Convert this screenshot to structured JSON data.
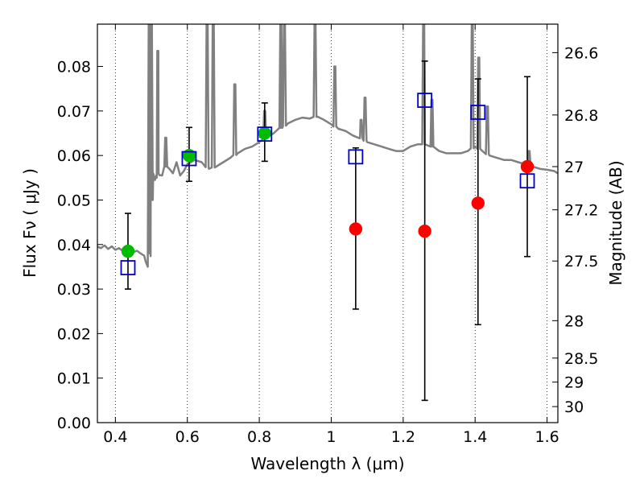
{
  "chart_data": {
    "type": "scatter",
    "xlabel": "Wavelength  λ (μm)",
    "ylabel_left": "Flux  Fν  ( μJy )",
    "ylabel_right": "Magnitude (AB)",
    "xlim": [
      0.35,
      1.63
    ],
    "ylim": [
      0.0,
      0.0895
    ],
    "x_ticks": [
      0.4,
      0.6,
      0.8,
      1.0,
      1.2,
      1.4,
      1.6
    ],
    "x_tick_labels": [
      "0.4",
      "0.6",
      "0.8",
      "1",
      "1.2",
      "1.4",
      "1.6"
    ],
    "y_ticks": [
      0.0,
      0.01,
      0.02,
      0.03,
      0.04,
      0.05,
      0.06,
      0.07,
      0.08
    ],
    "y_tick_labels": [
      "0.00",
      "0.01",
      "0.02",
      "0.03",
      "0.04",
      "0.05",
      "0.06",
      "0.07",
      "0.08"
    ],
    "right_ticks": [
      {
        "label": "26.6",
        "flux": 0.0831
      },
      {
        "label": "26.8",
        "flux": 0.0691
      },
      {
        "label": "27",
        "flux": 0.0575
      },
      {
        "label": "27.2",
        "flux": 0.0478
      },
      {
        "label": "27.5",
        "flux": 0.0363
      },
      {
        "label": "28",
        "flux": 0.0229
      },
      {
        "label": "28.5",
        "flux": 0.0145
      },
      {
        "label": "29",
        "flux": 0.0091
      },
      {
        "label": "30",
        "flux": 0.0036
      }
    ],
    "colors": {
      "model": "#808080",
      "green": "#00bb00",
      "red": "#ff0000",
      "square": "#0000cc",
      "errorbar": "#000000"
    },
    "series": [
      {
        "name": "model spectrum",
        "kind": "line",
        "points": [
          [
            0.35,
            0.0395
          ],
          [
            0.36,
            0.0392
          ],
          [
            0.37,
            0.0398
          ],
          [
            0.38,
            0.039
          ],
          [
            0.39,
            0.0396
          ],
          [
            0.4,
            0.0388
          ],
          [
            0.41,
            0.0392
          ],
          [
            0.42,
            0.0386
          ],
          [
            0.43,
            0.039
          ],
          [
            0.44,
            0.0385
          ],
          [
            0.45,
            0.0383
          ],
          [
            0.46,
            0.0386
          ],
          [
            0.47,
            0.038
          ],
          [
            0.48,
            0.0375
          ],
          [
            0.485,
            0.036
          ],
          [
            0.49,
            0.035
          ],
          [
            0.495,
            0.038
          ],
          [
            0.5,
            0.05
          ],
          [
            0.505,
            0.056
          ],
          [
            0.51,
            0.0545
          ],
          [
            0.515,
            0.055
          ],
          [
            0.52,
            0.056
          ],
          [
            0.53,
            0.0555
          ],
          [
            0.54,
            0.0575
          ],
          [
            0.55,
            0.057
          ],
          [
            0.56,
            0.056
          ],
          [
            0.57,
            0.0585
          ],
          [
            0.58,
            0.0555
          ],
          [
            0.59,
            0.0565
          ],
          [
            0.6,
            0.058
          ],
          [
            0.62,
            0.059
          ],
          [
            0.64,
            0.0585
          ],
          [
            0.66,
            0.057
          ],
          [
            0.68,
            0.0575
          ],
          [
            0.7,
            0.0585
          ],
          [
            0.72,
            0.0595
          ],
          [
            0.74,
            0.0605
          ],
          [
            0.76,
            0.0615
          ],
          [
            0.78,
            0.062
          ],
          [
            0.8,
            0.063
          ],
          [
            0.82,
            0.064
          ],
          [
            0.84,
            0.065
          ],
          [
            0.86,
            0.0662
          ],
          [
            0.88,
            0.0672
          ],
          [
            0.9,
            0.068
          ],
          [
            0.92,
            0.0685
          ],
          [
            0.94,
            0.0683
          ],
          [
            0.96,
            0.0688
          ],
          [
            0.98,
            0.068
          ],
          [
            1.0,
            0.067
          ],
          [
            1.02,
            0.066
          ],
          [
            1.04,
            0.0655
          ],
          [
            1.06,
            0.0645
          ],
          [
            1.08,
            0.064
          ],
          [
            1.1,
            0.063
          ],
          [
            1.12,
            0.0625
          ],
          [
            1.14,
            0.062
          ],
          [
            1.16,
            0.0615
          ],
          [
            1.18,
            0.061
          ],
          [
            1.2,
            0.061
          ],
          [
            1.22,
            0.062
          ],
          [
            1.24,
            0.0625
          ],
          [
            1.26,
            0.0625
          ],
          [
            1.28,
            0.062
          ],
          [
            1.3,
            0.061
          ],
          [
            1.32,
            0.0605
          ],
          [
            1.34,
            0.0605
          ],
          [
            1.36,
            0.0605
          ],
          [
            1.38,
            0.061
          ],
          [
            1.4,
            0.062
          ],
          [
            1.42,
            0.061
          ],
          [
            1.44,
            0.06
          ],
          [
            1.46,
            0.0595
          ],
          [
            1.48,
            0.059
          ],
          [
            1.5,
            0.059
          ],
          [
            1.52,
            0.0585
          ],
          [
            1.54,
            0.058
          ],
          [
            1.56,
            0.0575
          ],
          [
            1.58,
            0.057
          ],
          [
            1.6,
            0.0568
          ],
          [
            1.62,
            0.0565
          ],
          [
            1.63,
            0.056
          ]
        ],
        "emission_lines": [
          {
            "x": 0.494,
            "peak": 0.0895
          },
          {
            "x": 0.5,
            "peak": 0.0895
          },
          {
            "x": 0.518,
            "peak": 0.0835
          },
          {
            "x": 0.54,
            "peak": 0.064
          },
          {
            "x": 0.655,
            "peak": 0.0895
          },
          {
            "x": 0.672,
            "peak": 0.0895
          },
          {
            "x": 0.732,
            "peak": 0.076
          },
          {
            "x": 0.815,
            "peak": 0.07
          },
          {
            "x": 0.86,
            "peak": 0.0895
          },
          {
            "x": 0.87,
            "peak": 0.0895
          },
          {
            "x": 0.955,
            "peak": 0.0895
          },
          {
            "x": 1.01,
            "peak": 0.08
          },
          {
            "x": 1.094,
            "peak": 0.073
          },
          {
            "x": 1.083,
            "peak": 0.068
          },
          {
            "x": 1.257,
            "peak": 0.0895
          },
          {
            "x": 1.28,
            "peak": 0.0725
          },
          {
            "x": 1.392,
            "peak": 0.0895
          },
          {
            "x": 1.41,
            "peak": 0.082
          },
          {
            "x": 1.434,
            "peak": 0.071
          },
          {
            "x": 1.55,
            "peak": 0.061
          }
        ]
      },
      {
        "name": "green points",
        "kind": "circle",
        "points": [
          {
            "x": 0.435,
            "y": 0.0385,
            "yerr": [
              0.03,
              0.047
            ]
          },
          {
            "x": 0.605,
            "y": 0.06,
            "yerr": [
              0.0542,
              0.0663
            ]
          },
          {
            "x": 0.815,
            "y": 0.065,
            "yerr": [
              0.0587,
              0.0718
            ]
          }
        ]
      },
      {
        "name": "red points",
        "kind": "circle",
        "points": [
          {
            "x": 1.068,
            "y": 0.0435,
            "yerr": [
              0.0255,
              0.0617
            ]
          },
          {
            "x": 1.26,
            "y": 0.043,
            "yerr": [
              0.005,
              0.0812
            ]
          },
          {
            "x": 1.408,
            "y": 0.0493,
            "yerr": [
              0.022,
              0.0772
            ]
          },
          {
            "x": 1.545,
            "y": 0.0575,
            "yerr": [
              0.0373,
              0.0777
            ]
          }
        ]
      },
      {
        "name": "model photometry",
        "kind": "open-square",
        "points": [
          {
            "x": 0.435,
            "y": 0.0348
          },
          {
            "x": 0.605,
            "y": 0.0593
          },
          {
            "x": 0.815,
            "y": 0.0648
          },
          {
            "x": 1.068,
            "y": 0.0597
          },
          {
            "x": 1.26,
            "y": 0.0724
          },
          {
            "x": 1.408,
            "y": 0.0697
          },
          {
            "x": 1.545,
            "y": 0.0543
          }
        ]
      }
    ]
  }
}
